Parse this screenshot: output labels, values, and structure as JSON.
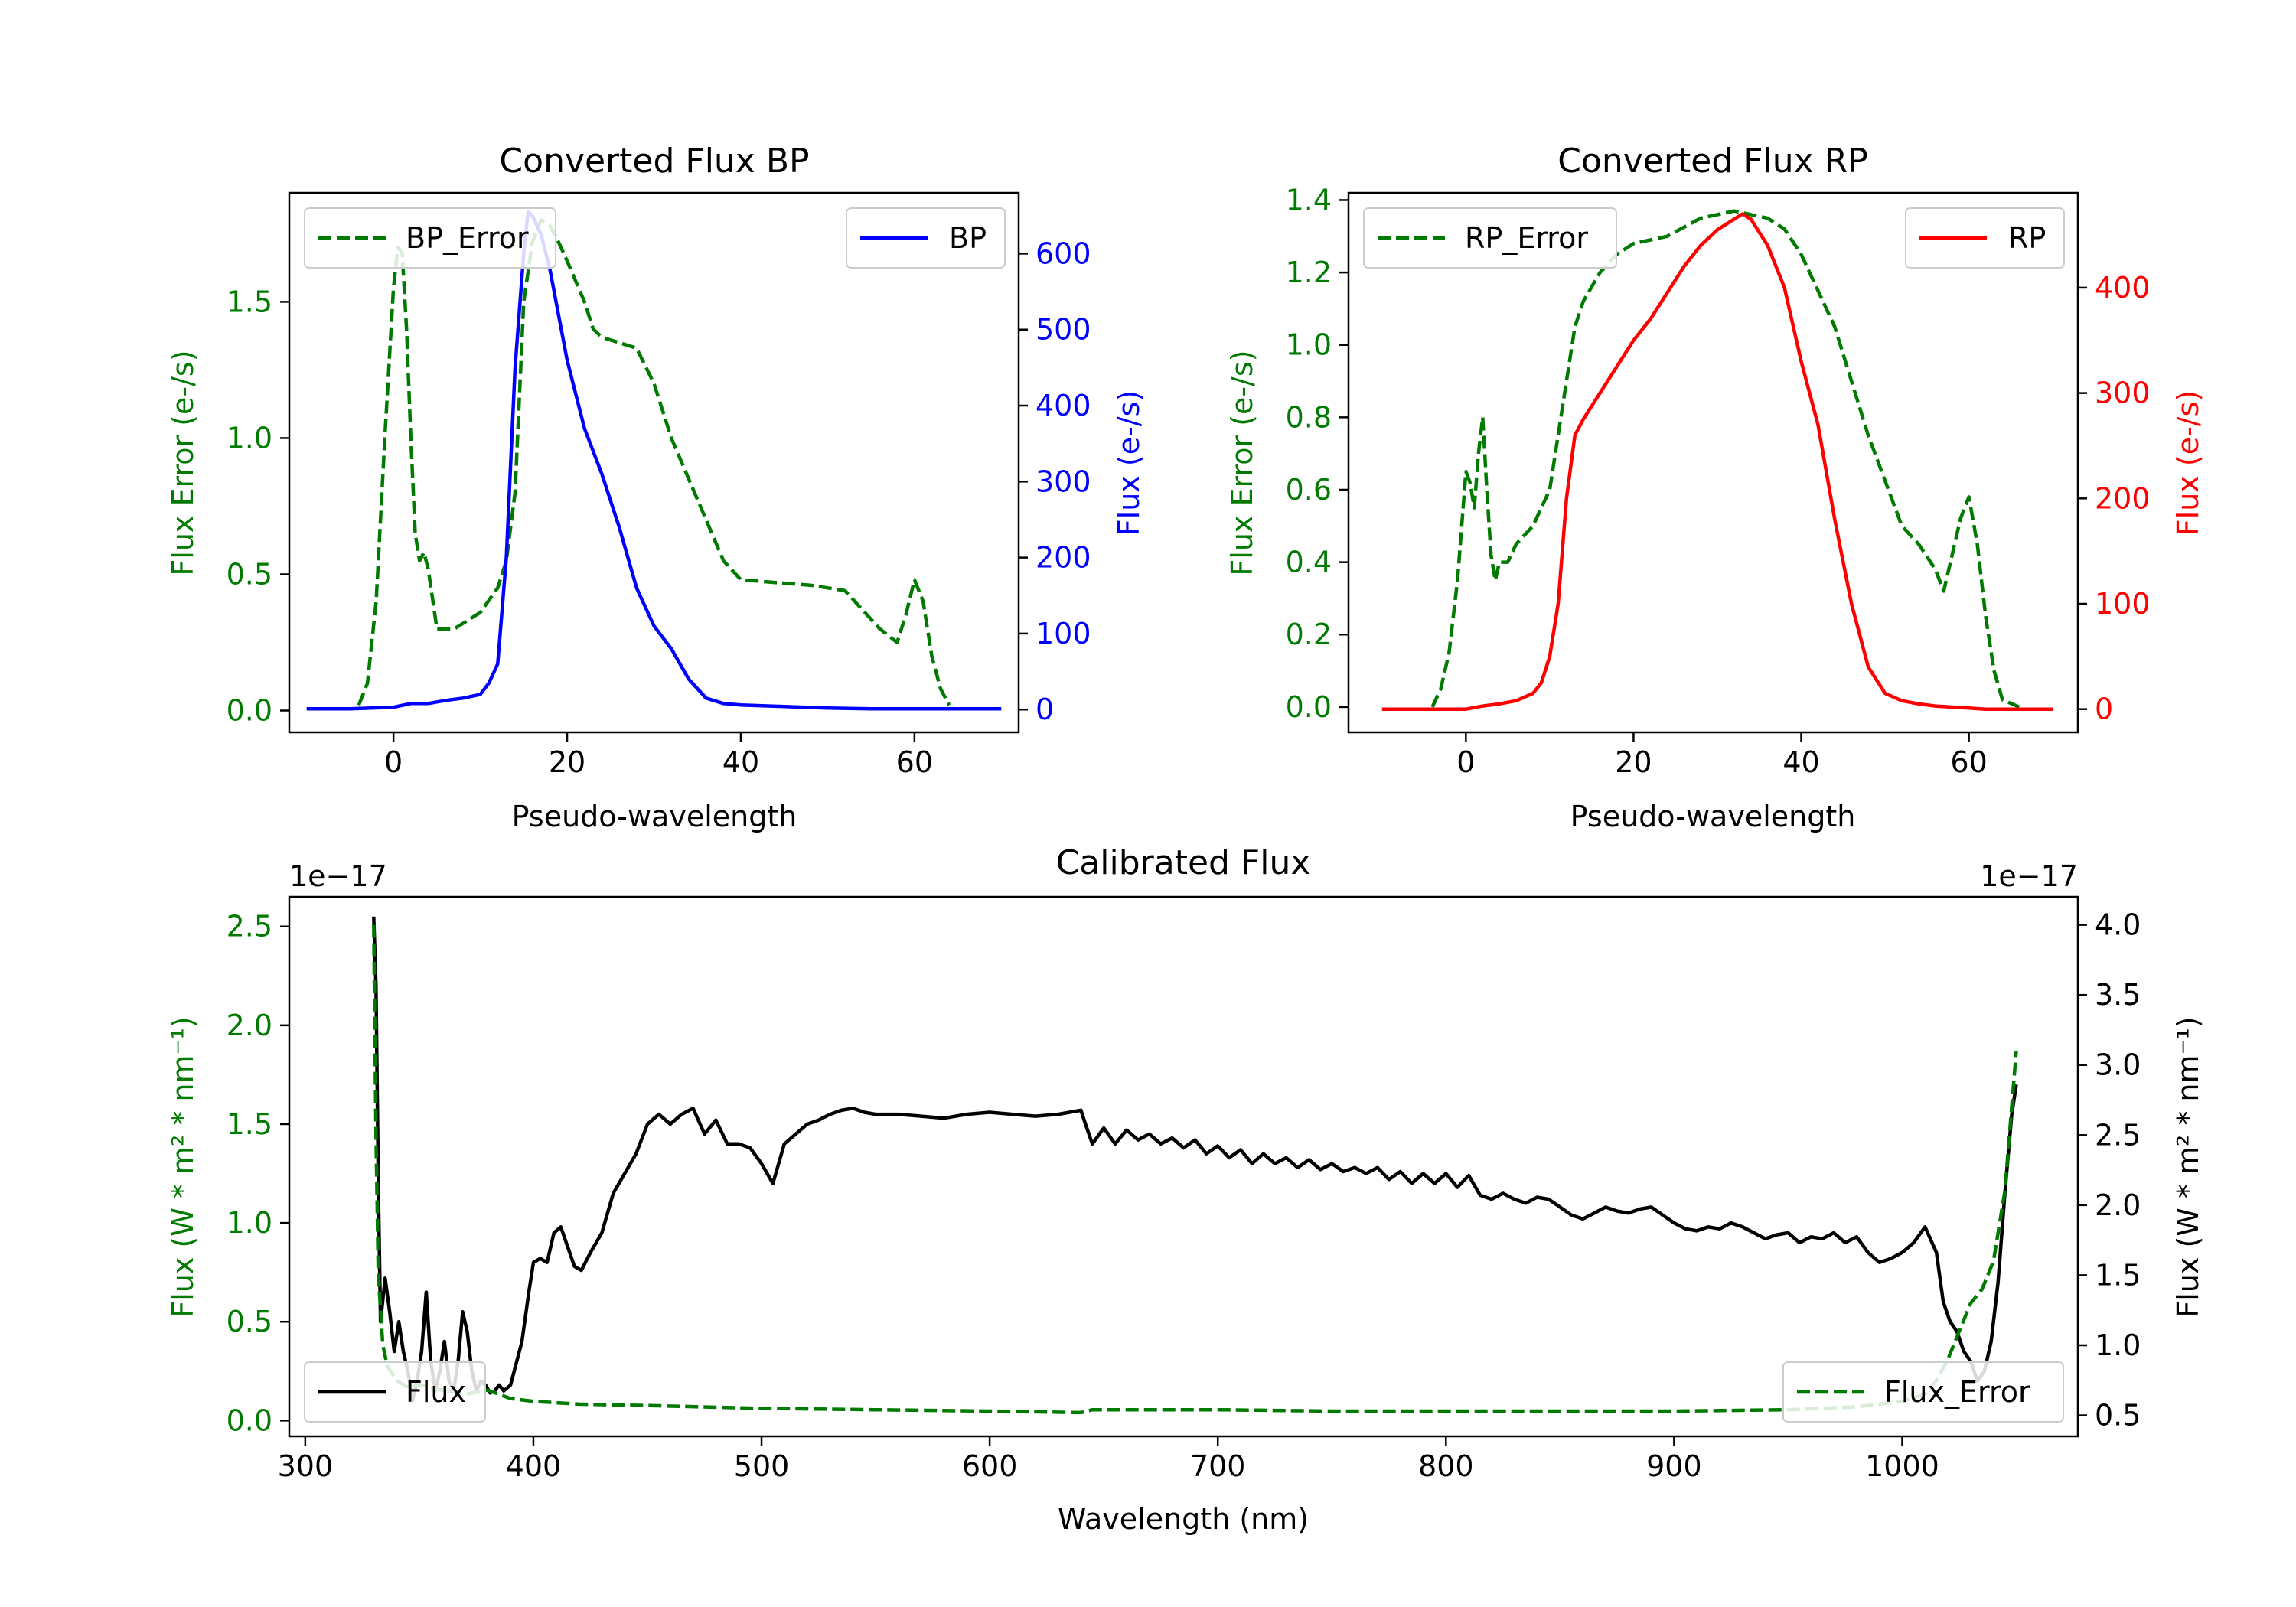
{
  "chart_data": [
    {
      "type": "line",
      "title": "Converted Flux BP",
      "xlabel": "Pseudo-wavelength",
      "ylabel_left": "Flux Error (e-/s)",
      "ylabel_right": "Flux (e-/s)",
      "xlim": [
        -12,
        72
      ],
      "ylim_left": [
        -0.08,
        1.9
      ],
      "ylim_right": [
        -30,
        680
      ],
      "xticks": [
        0,
        20,
        40,
        60
      ],
      "yticks_left": [
        "0.0",
        "0.5",
        "1.0",
        "1.5"
      ],
      "yticks_right": [
        "0",
        "100",
        "200",
        "300",
        "400",
        "500",
        "600"
      ],
      "series": [
        {
          "name": "BP_Error",
          "axis": "left",
          "style": "dashed",
          "color": "#007a00",
          "x": [
            -4,
            -3,
            -2,
            -1,
            0,
            0.5,
            1,
            1.5,
            2,
            2.5,
            3,
            3.5,
            4,
            5,
            6,
            7,
            8,
            10,
            12,
            13,
            14,
            15,
            16,
            17,
            18,
            19,
            20,
            22,
            23,
            24,
            26,
            28,
            30,
            32,
            34,
            36,
            38,
            40,
            44,
            48,
            52,
            56,
            58,
            59,
            60,
            61,
            62,
            63,
            64
          ],
          "y": [
            0.02,
            0.1,
            0.4,
            1.0,
            1.55,
            1.7,
            1.68,
            1.4,
            1.0,
            0.65,
            0.55,
            0.58,
            0.52,
            0.3,
            0.3,
            0.3,
            0.32,
            0.36,
            0.45,
            0.55,
            0.8,
            1.5,
            1.72,
            1.8,
            1.78,
            1.72,
            1.65,
            1.5,
            1.4,
            1.37,
            1.35,
            1.33,
            1.2,
            1.0,
            0.85,
            0.7,
            0.55,
            0.48,
            0.47,
            0.46,
            0.44,
            0.3,
            0.25,
            0.35,
            0.48,
            0.4,
            0.2,
            0.08,
            0.02
          ]
        },
        {
          "name": "BP",
          "axis": "right",
          "style": "solid",
          "color": "#0000ff",
          "x": [
            -10,
            -5,
            0,
            2,
            4,
            6,
            8,
            10,
            11,
            12,
            13,
            14,
            15,
            15.5,
            16,
            17,
            18,
            19,
            20,
            22,
            24,
            26,
            28,
            30,
            32,
            34,
            36,
            38,
            40,
            45,
            50,
            55,
            60,
            65,
            70
          ],
          "y": [
            1,
            1,
            3,
            8,
            8,
            12,
            15,
            20,
            35,
            60,
            200,
            450,
            600,
            655,
            650,
            625,
            580,
            520,
            460,
            370,
            310,
            240,
            160,
            110,
            80,
            40,
            15,
            8,
            6,
            4,
            2,
            1,
            1,
            1,
            1
          ]
        }
      ]
    },
    {
      "type": "line",
      "title": "Converted Flux RP",
      "xlabel": "Pseudo-wavelength",
      "ylabel_left": "Flux Error (e-/s)",
      "ylabel_right": "Flux (e-/s)",
      "xlim": [
        -14,
        73
      ],
      "ylim_left": [
        -0.07,
        1.42
      ],
      "ylim_right": [
        -22,
        490
      ],
      "xticks": [
        0,
        20,
        40,
        60
      ],
      "yticks_left": [
        "0.0",
        "0.2",
        "0.4",
        "0.6",
        "0.8",
        "1.0",
        "1.2",
        "1.4"
      ],
      "yticks_right": [
        "0",
        "100",
        "200",
        "300",
        "400"
      ],
      "series": [
        {
          "name": "RP_Error",
          "axis": "left",
          "style": "dashed",
          "color": "#007a00",
          "x": [
            -4,
            -3,
            -2,
            -1,
            0,
            0.5,
            1,
            1.5,
            2,
            2.5,
            3,
            3.5,
            4,
            5,
            6,
            8,
            10,
            12,
            13,
            14,
            16,
            18,
            20,
            24,
            28,
            32,
            34,
            36,
            38,
            40,
            44,
            48,
            52,
            54,
            56,
            57,
            58,
            59,
            60,
            61,
            62,
            63,
            64,
            65,
            66
          ],
          "y": [
            0.0,
            0.05,
            0.15,
            0.35,
            0.65,
            0.62,
            0.55,
            0.7,
            0.8,
            0.6,
            0.42,
            0.35,
            0.4,
            0.4,
            0.45,
            0.5,
            0.6,
            0.9,
            1.05,
            1.12,
            1.2,
            1.25,
            1.28,
            1.3,
            1.35,
            1.37,
            1.36,
            1.35,
            1.32,
            1.25,
            1.05,
            0.75,
            0.5,
            0.45,
            0.38,
            0.32,
            0.42,
            0.52,
            0.58,
            0.45,
            0.25,
            0.1,
            0.02,
            0.01,
            0.0
          ]
        },
        {
          "name": "RP",
          "axis": "right",
          "style": "solid",
          "color": "#ff0000",
          "x": [
            -10,
            -5,
            0,
            2,
            4,
            6,
            8,
            9,
            10,
            11,
            12,
            13,
            14,
            16,
            18,
            20,
            22,
            24,
            26,
            28,
            30,
            31,
            32,
            33,
            34,
            36,
            38,
            40,
            42,
            44,
            46,
            48,
            50,
            52,
            54,
            56,
            58,
            60,
            62,
            64,
            66,
            70
          ],
          "y": [
            0,
            0,
            0,
            3,
            5,
            8,
            15,
            25,
            50,
            100,
            200,
            260,
            275,
            300,
            325,
            350,
            370,
            395,
            420,
            440,
            455,
            460,
            465,
            470,
            465,
            440,
            400,
            330,
            270,
            180,
            100,
            40,
            15,
            8,
            5,
            3,
            2,
            1,
            0,
            0,
            0,
            0
          ]
        }
      ]
    },
    {
      "type": "line",
      "title": "Calibrated Flux",
      "xlabel": "Wavelength (nm)",
      "ylabel_left": "Flux (W * m² * nm⁻¹)",
      "ylabel_right": "Flux (W * m² * nm⁻¹)",
      "offset_left": "1e−17",
      "offset_right": "1e−17",
      "xlim": [
        293,
        1077
      ],
      "ylim_left": [
        -0.08,
        2.65
      ],
      "ylim_right": [
        0.35,
        4.2
      ],
      "xticks": [
        300,
        400,
        500,
        600,
        700,
        800,
        900,
        1000
      ],
      "yticks_left": [
        "0.0",
        "0.5",
        "1.0",
        "1.5",
        "2.0",
        "2.5"
      ],
      "yticks_right": [
        "0.5",
        "1.0",
        "1.5",
        "2.0",
        "2.5",
        "3.0",
        "3.5",
        "4.0"
      ],
      "series": [
        {
          "name": "Flux",
          "axis": "left",
          "style": "solid",
          "color": "#000000",
          "x": [
            330,
            331,
            332,
            333,
            335,
            337,
            339,
            341,
            343,
            345,
            347,
            349,
            351,
            353,
            355,
            357,
            359,
            361,
            363,
            365,
            367,
            369,
            371,
            373,
            375,
            377,
            379,
            381,
            383,
            385,
            387,
            390,
            395,
            398,
            400,
            403,
            406,
            409,
            412,
            415,
            418,
            421,
            425,
            430,
            435,
            440,
            445,
            450,
            455,
            460,
            465,
            470,
            475,
            480,
            485,
            490,
            495,
            500,
            505,
            510,
            515,
            520,
            525,
            530,
            535,
            540,
            545,
            550,
            560,
            570,
            580,
            590,
            600,
            610,
            620,
            630,
            640,
            642,
            645,
            650,
            655,
            660,
            665,
            670,
            675,
            680,
            685,
            690,
            695,
            700,
            705,
            710,
            715,
            720,
            725,
            730,
            735,
            740,
            745,
            750,
            755,
            760,
            765,
            770,
            775,
            780,
            785,
            790,
            795,
            800,
            805,
            810,
            815,
            820,
            825,
            830,
            835,
            840,
            845,
            850,
            855,
            860,
            865,
            870,
            875,
            880,
            885,
            890,
            895,
            900,
            905,
            910,
            915,
            920,
            925,
            930,
            935,
            940,
            945,
            950,
            955,
            960,
            965,
            970,
            975,
            980,
            985,
            990,
            995,
            1000,
            1005,
            1010,
            1015,
            1018,
            1021,
            1024,
            1027,
            1030,
            1033,
            1036,
            1039,
            1042,
            1045,
            1048,
            1050
          ],
          "y": [
            2.55,
            2.2,
            1.2,
            0.5,
            0.72,
            0.55,
            0.35,
            0.5,
            0.35,
            0.25,
            0.1,
            0.2,
            0.35,
            0.65,
            0.3,
            0.15,
            0.25,
            0.4,
            0.2,
            0.15,
            0.3,
            0.55,
            0.45,
            0.25,
            0.15,
            0.2,
            0.18,
            0.14,
            0.15,
            0.18,
            0.15,
            0.18,
            0.4,
            0.65,
            0.8,
            0.82,
            0.8,
            0.95,
            0.98,
            0.88,
            0.78,
            0.76,
            0.85,
            0.95,
            1.15,
            1.25,
            1.35,
            1.5,
            1.55,
            1.5,
            1.55,
            1.58,
            1.45,
            1.52,
            1.4,
            1.4,
            1.38,
            1.3,
            1.2,
            1.4,
            1.45,
            1.5,
            1.52,
            1.55,
            1.57,
            1.58,
            1.56,
            1.55,
            1.55,
            1.54,
            1.53,
            1.55,
            1.56,
            1.55,
            1.54,
            1.55,
            1.57,
            1.5,
            1.4,
            1.48,
            1.4,
            1.47,
            1.42,
            1.45,
            1.4,
            1.43,
            1.38,
            1.42,
            1.35,
            1.39,
            1.33,
            1.37,
            1.3,
            1.35,
            1.3,
            1.33,
            1.28,
            1.32,
            1.27,
            1.3,
            1.26,
            1.28,
            1.25,
            1.28,
            1.22,
            1.26,
            1.2,
            1.25,
            1.2,
            1.25,
            1.18,
            1.24,
            1.14,
            1.12,
            1.15,
            1.12,
            1.1,
            1.13,
            1.12,
            1.08,
            1.04,
            1.02,
            1.05,
            1.08,
            1.06,
            1.05,
            1.07,
            1.08,
            1.04,
            1.0,
            0.97,
            0.96,
            0.98,
            0.97,
            1.0,
            0.98,
            0.95,
            0.92,
            0.94,
            0.95,
            0.9,
            0.93,
            0.92,
            0.95,
            0.9,
            0.93,
            0.85,
            0.8,
            0.82,
            0.85,
            0.9,
            0.98,
            0.85,
            0.6,
            0.5,
            0.45,
            0.35,
            0.3,
            0.2,
            0.25,
            0.4,
            0.7,
            1.15,
            1.55,
            1.7
          ]
        },
        {
          "name": "Flux_Error",
          "axis": "right",
          "style": "dashed",
          "color": "#007a00",
          "x": [
            330,
            331,
            332,
            334,
            336,
            340,
            345,
            350,
            360,
            370,
            380,
            390,
            400,
            420,
            450,
            500,
            550,
            600,
            640,
            645,
            700,
            750,
            800,
            850,
            900,
            950,
            980,
            1000,
            1010,
            1015,
            1020,
            1025,
            1030,
            1035,
            1040,
            1045,
            1050
          ],
          "y": [
            4.0,
            2.5,
            1.5,
            1.0,
            0.85,
            0.75,
            0.7,
            0.72,
            0.68,
            0.65,
            0.68,
            0.62,
            0.6,
            0.58,
            0.57,
            0.55,
            0.54,
            0.53,
            0.52,
            0.54,
            0.54,
            0.53,
            0.53,
            0.53,
            0.53,
            0.54,
            0.56,
            0.6,
            0.65,
            0.75,
            0.9,
            1.1,
            1.3,
            1.4,
            1.6,
            2.1,
            3.1
          ]
        }
      ]
    }
  ]
}
